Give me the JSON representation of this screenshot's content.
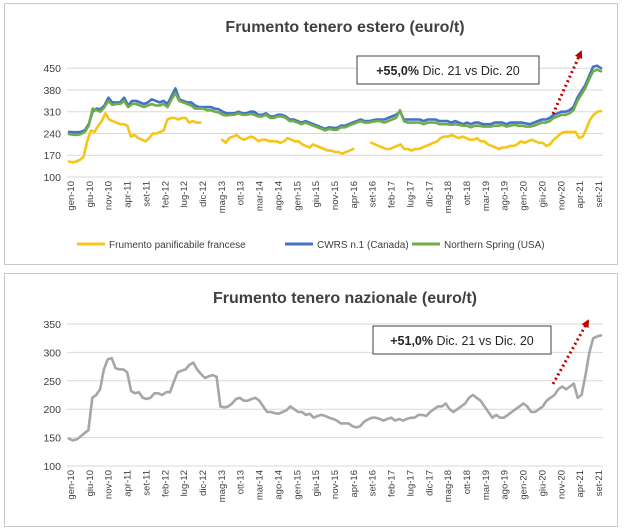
{
  "chart_data": [
    {
      "type": "line",
      "title": "Frumento tenero estero (euro/t)",
      "ylim": [
        100,
        470
      ],
      "yticks": [
        100,
        170,
        240,
        310,
        380,
        450
      ],
      "xtick_labels": [
        "gen-10",
        "giu-10",
        "nov-10",
        "apr-11",
        "set-11",
        "feb-12",
        "lug-12",
        "dic-12",
        "mag-13",
        "ott-13",
        "mar-14",
        "ago-14",
        "gen-15",
        "giu-15",
        "nov-15",
        "apr-16",
        "set-16",
        "feb-17",
        "lug-17",
        "dic-17",
        "mag-18",
        "ott-18",
        "mar-19",
        "ago-19",
        "gen-20",
        "giu-20",
        "nov-20",
        "apr-21",
        "set-21"
      ],
      "grid": "horizontal",
      "legend_position": "bottom",
      "annotation": {
        "bold": "+55,0%",
        "text": " Dic. 21 vs Dic. 20"
      },
      "series": [
        {
          "name": "Frumento panificabile francese",
          "color": "#f5c518",
          "values": [
            150,
            147,
            150,
            155,
            165,
            215,
            250,
            245,
            265,
            280,
            305,
            285,
            280,
            275,
            270,
            270,
            265,
            230,
            235,
            225,
            220,
            215,
            225,
            240,
            240,
            245,
            250,
            285,
            290,
            290,
            285,
            290,
            290,
            275,
            280,
            275,
            275,
            null,
            null,
            null,
            null,
            null,
            220,
            210,
            225,
            230,
            235,
            225,
            220,
            225,
            230,
            225,
            215,
            220,
            220,
            215,
            215,
            215,
            210,
            215,
            225,
            220,
            215,
            215,
            205,
            200,
            195,
            205,
            200,
            195,
            190,
            185,
            185,
            180,
            180,
            175,
            180,
            185,
            190,
            null,
            null,
            null,
            null,
            210,
            205,
            200,
            195,
            190,
            190,
            195,
            200,
            205,
            190,
            190,
            185,
            190,
            190,
            195,
            200,
            205,
            210,
            215,
            225,
            230,
            230,
            235,
            230,
            225,
            230,
            225,
            220,
            220,
            225,
            215,
            215,
            205,
            200,
            195,
            190,
            195,
            195,
            200,
            200,
            205,
            215,
            210,
            215,
            220,
            215,
            210,
            210,
            200,
            205,
            220,
            230,
            240,
            245,
            245,
            245,
            245,
            225,
            230,
            255,
            285,
            300,
            310,
            312
          ]
        },
        {
          "name": "CWRS n.1 (Canada)",
          "color": "#4472c4",
          "values": [
            245,
            244,
            244,
            245,
            250,
            270,
            310,
            320,
            318,
            330,
            355,
            340,
            340,
            340,
            355,
            330,
            345,
            345,
            340,
            335,
            340,
            350,
            345,
            340,
            345,
            335,
            360,
            385,
            350,
            345,
            340,
            340,
            330,
            325,
            325,
            325,
            325,
            320,
            318,
            310,
            305,
            305,
            305,
            310,
            305,
            305,
            310,
            310,
            300,
            300,
            305,
            295,
            295,
            300,
            300,
            295,
            285,
            285,
            280,
            275,
            280,
            275,
            270,
            265,
            260,
            255,
            260,
            258,
            258,
            265,
            265,
            270,
            275,
            280,
            285,
            280,
            280,
            282,
            285,
            285,
            285,
            290,
            295,
            300,
            310,
            285,
            285,
            285,
            285,
            285,
            280,
            285,
            285,
            285,
            280,
            280,
            280,
            275,
            280,
            275,
            270,
            275,
            270,
            275,
            275,
            270,
            270,
            270,
            275,
            275,
            275,
            270,
            275,
            275,
            275,
            275,
            272,
            270,
            275,
            280,
            285,
            285,
            290,
            300,
            305,
            310,
            310,
            315,
            325,
            355,
            375,
            395,
            425,
            455,
            458,
            450
          ]
        },
        {
          "name": "Northern Spring (USA)",
          "color": "#70ad47",
          "values": [
            238,
            236,
            235,
            238,
            245,
            265,
            320,
            315,
            310,
            325,
            345,
            332,
            335,
            335,
            345,
            325,
            335,
            335,
            330,
            325,
            330,
            335,
            330,
            330,
            335,
            325,
            350,
            370,
            345,
            340,
            335,
            330,
            320,
            320,
            320,
            315,
            315,
            310,
            308,
            300,
            298,
            300,
            300,
            305,
            300,
            300,
            303,
            300,
            295,
            295,
            300,
            290,
            290,
            295,
            295,
            290,
            280,
            280,
            275,
            270,
            275,
            270,
            265,
            260,
            255,
            250,
            255,
            252,
            252,
            260,
            260,
            265,
            270,
            275,
            280,
            275,
            275,
            278,
            280,
            280,
            275,
            280,
            285,
            290,
            315,
            280,
            275,
            275,
            275,
            275,
            270,
            275,
            275,
            275,
            270,
            270,
            270,
            268,
            270,
            268,
            265,
            265,
            260,
            265,
            265,
            262,
            262,
            262,
            265,
            265,
            268,
            262,
            265,
            268,
            265,
            265,
            262,
            262,
            265,
            270,
            275,
            275,
            280,
            290,
            295,
            300,
            300,
            305,
            315,
            345,
            365,
            385,
            415,
            440,
            445,
            440
          ]
        }
      ]
    },
    {
      "type": "line",
      "title": "Frumento tenero nazionale (euro/t)",
      "ylim": [
        100,
        350
      ],
      "yticks": [
        100,
        150,
        200,
        250,
        300,
        350
      ],
      "xtick_labels": [
        "gen-10",
        "giu-10",
        "nov-10",
        "apr-11",
        "set-11",
        "feb-12",
        "lug-12",
        "dic-12",
        "mag-13",
        "ott-13",
        "mar-14",
        "ago-14",
        "gen-15",
        "giu-15",
        "nov-15",
        "apr-16",
        "set-16",
        "feb-17",
        "lug-17",
        "dic-17",
        "mag-18",
        "ott-18",
        "mar-19",
        "ago-19",
        "gen-20",
        "giu-20",
        "nov-20",
        "apr-21",
        "set-21"
      ],
      "grid": "horizontal",
      "annotation": {
        "bold": "+51,0%",
        "text": " Dic. 21 vs Dic. 20"
      },
      "series": [
        {
          "color": "#a6a6a6",
          "values": [
            148,
            145,
            147,
            152,
            158,
            163,
            220,
            225,
            235,
            270,
            288,
            290,
            272,
            270,
            270,
            265,
            232,
            228,
            230,
            220,
            218,
            220,
            228,
            228,
            225,
            230,
            230,
            248,
            265,
            268,
            270,
            278,
            282,
            270,
            262,
            255,
            258,
            260,
            257,
            205,
            203,
            205,
            210,
            218,
            220,
            215,
            215,
            218,
            220,
            215,
            205,
            195,
            195,
            193,
            192,
            195,
            198,
            205,
            200,
            195,
            195,
            190,
            192,
            185,
            188,
            190,
            188,
            185,
            183,
            180,
            175,
            175,
            175,
            170,
            168,
            170,
            178,
            182,
            185,
            185,
            183,
            180,
            183,
            185,
            180,
            183,
            180,
            183,
            185,
            185,
            190,
            190,
            188,
            195,
            200,
            205,
            205,
            210,
            200,
            195,
            200,
            205,
            210,
            220,
            225,
            220,
            215,
            205,
            195,
            185,
            190,
            185,
            185,
            190,
            195,
            200,
            205,
            210,
            205,
            195,
            195,
            200,
            205,
            215,
            220,
            225,
            235,
            240,
            235,
            240,
            245,
            220,
            225,
            260,
            300,
            325,
            328,
            330
          ]
        }
      ]
    }
  ]
}
